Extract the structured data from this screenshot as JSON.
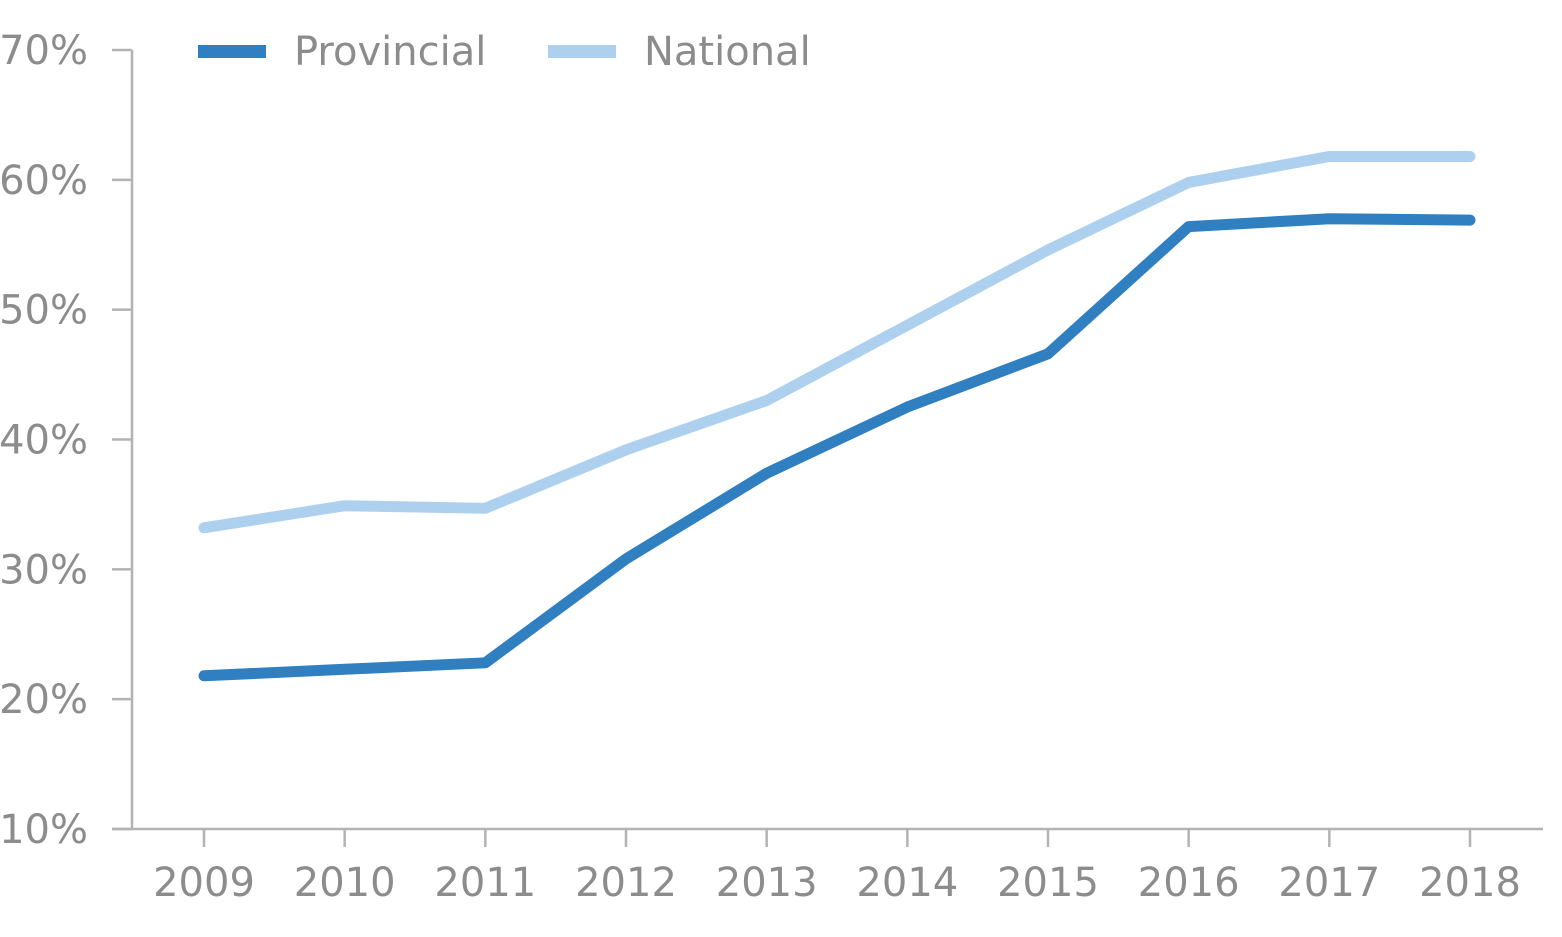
{
  "chart_data": {
    "type": "line",
    "title": "",
    "xlabel": "",
    "ylabel": "",
    "categories": [
      "2009",
      "2010",
      "2011",
      "2012",
      "2013",
      "2014",
      "2015",
      "2016",
      "2017",
      "2018"
    ],
    "ylim": [
      10,
      70
    ],
    "yticks": [
      10,
      20,
      30,
      40,
      50,
      60,
      70
    ],
    "ytick_labels": [
      "10%",
      "20%",
      "30%",
      "40%",
      "50%",
      "60%",
      "70%"
    ],
    "grid": false,
    "legend_position": "top-left",
    "series": [
      {
        "name": "Provincial",
        "color": "#2f7fc1",
        "values": [
          21.8,
          22.3,
          22.8,
          30.8,
          37.4,
          42.5,
          46.6,
          56.4,
          57.0,
          56.9
        ]
      },
      {
        "name": "National",
        "color": "#aed0ef",
        "values": [
          33.2,
          34.9,
          34.7,
          39.2,
          43.0,
          48.8,
          54.6,
          59.8,
          61.8,
          61.8
        ]
      }
    ]
  }
}
